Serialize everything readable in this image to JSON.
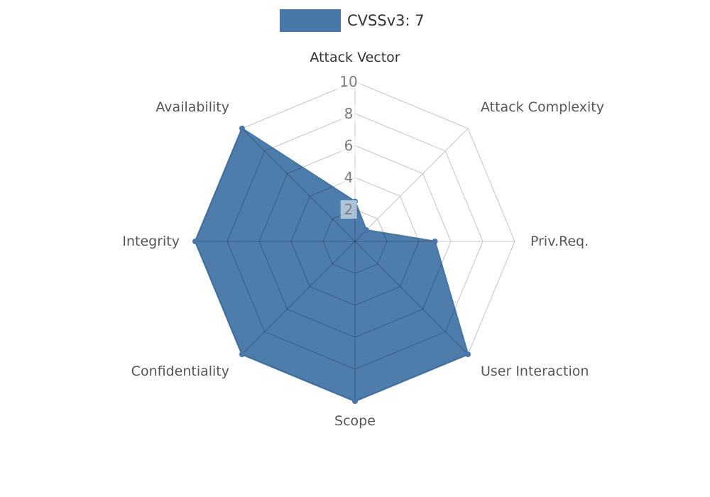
{
  "chart_data": {
    "type": "radar",
    "title": "",
    "categories": [
      "Attack Vector",
      "Attack Complexity",
      "Priv.Req.",
      "User Interaction",
      "Scope",
      "Confidentiality",
      "Integrity",
      "Availability"
    ],
    "series": [
      {
        "name": "CVSSv3: 7",
        "values": [
          2.5,
          1,
          5,
          10,
          10,
          10,
          10,
          10
        ],
        "color": "#4878a8"
      }
    ],
    "radial_ticks": [
      10,
      8,
      6,
      4,
      2
    ],
    "rmax": 10,
    "grid": true,
    "legend_position": "top-center",
    "colors": {
      "fill": "#4878a8",
      "grid": "#c4c4c4",
      "inner_grid": "rgba(20,40,70,0.35)",
      "axis_label": "#555555",
      "primary_axis_label": "#333333",
      "tick_label": "#7d7d7d"
    }
  }
}
